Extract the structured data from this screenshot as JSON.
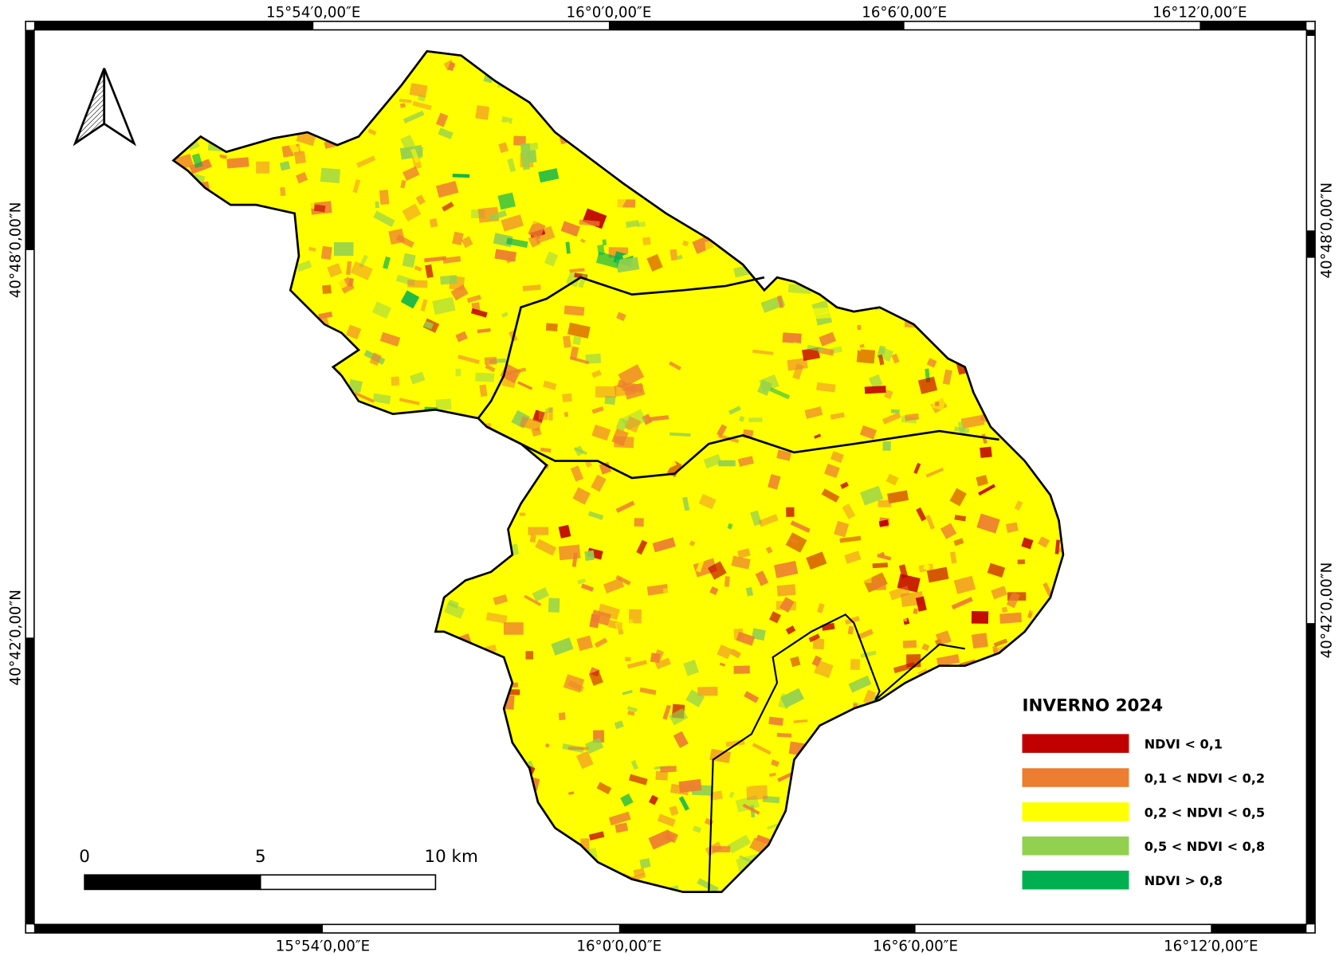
{
  "map": {
    "graticule": {
      "top": [
        "15°54′0,00″E",
        "16°0′0,00″E",
        "16°6′0,00″E",
        "16°12′0,00″E"
      ],
      "bottom": [
        "15°54′0,00″E",
        "16°0′0,00″E",
        "16°6′0,00″E",
        "16°12′0,00″E"
      ],
      "left": [
        "40°48′0,00″N",
        "40°42′0,00″N"
      ],
      "right": [
        "40°48′0,00″N",
        "40°42′0,00″N"
      ]
    },
    "legend": {
      "title": "INVERNO 2024",
      "items": [
        {
          "label": "NDVI < 0,1",
          "color": "#c00000"
        },
        {
          "label": "0,1 < NDVI < 0,2",
          "color": "#ed7d31"
        },
        {
          "label": "0,2 < NDVI < 0,5",
          "color": "#ffff00"
        },
        {
          "label": "0,5 < NDVI < 0,8",
          "color": "#92d050"
        },
        {
          "label": "NDVI > 0,8",
          "color": "#00b050"
        }
      ]
    },
    "scale_bar": {
      "labels": [
        "0",
        "5",
        "10 km"
      ]
    }
  }
}
